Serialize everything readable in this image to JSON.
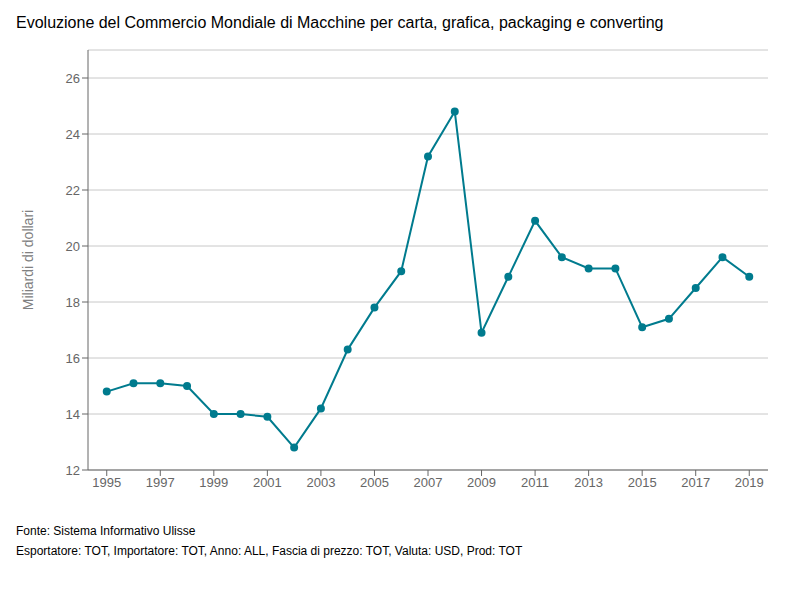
{
  "chart_data": {
    "type": "line",
    "title": "Evoluzione del Commercio Mondiale di Macchine per carta, grafica, packaging e converting",
    "ylabel": "Miliardi di dollari",
    "annotations": [
      "Fonte: Sistema Informativo Ulisse",
      "Esportatore: TOT, Importatore: TOT, Anno: ALL, Fascia di prezzo: TOT, Valuta: USD, Prod: TOT"
    ],
    "x": [
      1995,
      1996,
      1997,
      1998,
      1999,
      2000,
      2001,
      2002,
      2003,
      2004,
      2005,
      2006,
      2007,
      2008,
      2009,
      2010,
      2011,
      2012,
      2013,
      2014,
      2015,
      2016,
      2017,
      2018,
      2019
    ],
    "values": [
      14.8,
      15.1,
      15.1,
      15.0,
      14.0,
      14.0,
      13.9,
      12.8,
      14.2,
      16.3,
      17.8,
      19.1,
      23.2,
      24.8,
      16.9,
      18.9,
      20.9,
      19.6,
      19.2,
      19.2,
      17.1,
      17.4,
      18.5,
      19.6,
      18.9
    ],
    "color": "#007B8E",
    "marker": "circle",
    "xlim": [
      1994.3,
      2019.7
    ],
    "xticks": [
      1995,
      1997,
      1999,
      2001,
      2003,
      2005,
      2007,
      2009,
      2011,
      2013,
      2015,
      2017,
      2019
    ],
    "ylim": [
      12,
      27
    ],
    "yticks": [
      12,
      14,
      16,
      18,
      20,
      22,
      24,
      26
    ],
    "grid": "y"
  }
}
